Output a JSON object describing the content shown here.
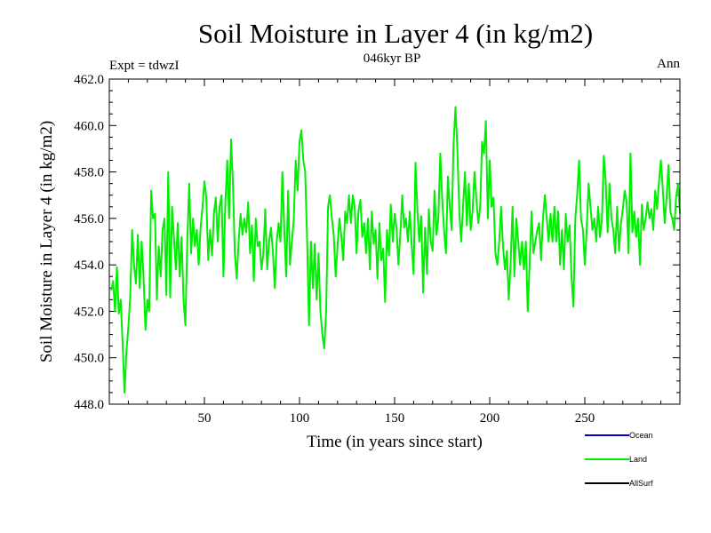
{
  "chart_data": {
    "type": "line",
    "title": "Soil Moisture in Layer 4 (in kg/m2)",
    "subtitle": "046kyr BP",
    "left_note": "Expt = tdwzI",
    "right_note": "Ann",
    "xlabel": "Time (in years since start)",
    "ylabel": "Soil Moisture in Layer 4 (in kg/m2)",
    "xlim": [
      0,
      300
    ],
    "ylim": [
      448.0,
      462.0
    ],
    "x_ticks": [
      50,
      100,
      150,
      200,
      250
    ],
    "y_ticks": [
      "448.0",
      "450.0",
      "452.0",
      "454.0",
      "456.0",
      "458.0",
      "460.0",
      "462.0"
    ],
    "grid": false,
    "legend_position": "bottom-right",
    "legend": [
      {
        "name": "Ocean",
        "color": "#0000cc"
      },
      {
        "name": "Land",
        "color": "#00ee00"
      },
      {
        "name": "AllSurf",
        "color": "#000000"
      }
    ],
    "series": [
      {
        "name": "Land",
        "color": "#00ee00",
        "x_start": 1,
        "x_step": 1,
        "values": [
          452.9,
          453.3,
          452.0,
          453.9,
          451.9,
          452.5,
          450.6,
          448.5,
          450.3,
          451.3,
          452.6,
          455.5,
          454.0,
          453.2,
          455.3,
          453.0,
          455.0,
          453.5,
          451.2,
          452.5,
          452.0,
          457.2,
          456.0,
          456.2,
          452.5,
          454.8,
          453.5,
          455.5,
          456.0,
          452.7,
          458.0,
          452.6,
          456.5,
          455.1,
          453.8,
          455.8,
          453.5,
          455.2,
          452.5,
          451.4,
          455.0,
          457.5,
          454.5,
          456.0,
          454.8,
          455.5,
          454.0,
          455.6,
          456.5,
          457.6,
          456.9,
          454.2,
          455.5,
          454.4,
          456.2,
          456.9,
          455.0,
          456.5,
          457.0,
          453.5,
          456.6,
          458.5,
          456.0,
          459.4,
          457.5,
          454.5,
          453.4,
          455.0,
          456.2,
          455.3,
          456.0,
          455.4,
          456.7,
          454.5,
          455.7,
          453.3,
          456.0,
          454.8,
          455.0,
          453.8,
          454.5,
          456.4,
          453.8,
          455.0,
          455.6,
          454.6,
          453.0,
          455.0,
          455.8,
          455.0,
          458.0,
          455.5,
          453.5,
          457.2,
          454.0,
          455.0,
          456.0,
          458.5,
          457.2,
          459.3,
          459.8,
          458.5,
          458.0,
          455.0,
          451.4,
          455.0,
          453.0,
          454.9,
          452.5,
          454.5,
          452.0,
          451.0,
          450.4,
          452.0,
          456.5,
          457.0,
          456.0,
          455.3,
          453.5,
          454.8,
          456.0,
          455.2,
          454.2,
          456.3,
          455.8,
          457.0,
          455.8,
          457.0,
          456.5,
          454.5,
          456.3,
          456.8,
          455.2,
          455.8,
          454.5,
          456.0,
          453.8,
          456.3,
          454.9,
          455.5,
          453.4,
          455.8,
          454.2,
          454.7,
          452.4,
          455.5,
          454.4,
          456.6,
          455.0,
          456.2,
          455.6,
          454.0,
          455.3,
          457.0,
          455.6,
          456.0,
          455.0,
          456.3,
          454.8,
          453.6,
          458.4,
          456.3,
          455.0,
          456.1,
          452.8,
          455.6,
          453.6,
          456.4,
          455.0,
          454.6,
          457.2,
          455.3,
          456.0,
          458.8,
          456.9,
          455.5,
          454.5,
          457.8,
          456.5,
          455.5,
          459.2,
          460.8,
          459.0,
          456.3,
          455.0,
          456.5,
          458.0,
          455.7,
          457.5,
          455.5,
          456.3,
          458.0,
          456.8,
          455.8,
          456.5,
          459.3,
          458.8,
          460.2,
          456.0,
          458.5,
          456.5,
          456.9,
          454.5,
          454.0,
          455.0,
          456.5,
          454.8,
          453.8,
          454.6,
          452.5,
          454.0,
          456.5,
          453.5,
          456.0,
          455.0,
          454.0,
          455.0,
          453.8,
          455.0,
          452.0,
          454.0,
          456.3,
          454.5,
          455.0,
          455.5,
          455.8,
          454.2,
          456.0,
          457.0,
          456.0,
          455.0,
          456.2,
          455.0,
          456.5,
          455.0,
          456.3,
          454.0,
          455.5,
          453.8,
          456.2,
          455.0,
          455.7,
          453.5,
          452.2,
          456.0,
          457.0,
          458.5,
          456.0,
          455.5,
          454.0,
          455.5,
          457.5,
          456.5,
          455.5,
          456.0,
          455.0,
          456.5,
          455.2,
          456.0,
          458.7,
          457.6,
          455.4,
          457.5,
          456.0,
          455.5,
          454.5,
          456.5,
          454.6,
          455.8,
          456.4,
          457.2,
          456.7,
          454.5,
          458.8,
          455.4,
          456.3,
          455.2,
          456.0,
          454.0,
          456.6,
          455.5,
          456.0,
          456.7,
          456.0,
          456.4,
          455.5,
          457.2,
          456.4,
          457.6,
          458.5,
          457.3,
          455.8,
          456.9,
          458.3,
          456.3,
          456.0,
          455.5,
          456.9,
          457.5,
          456.2
        ]
      }
    ]
  }
}
